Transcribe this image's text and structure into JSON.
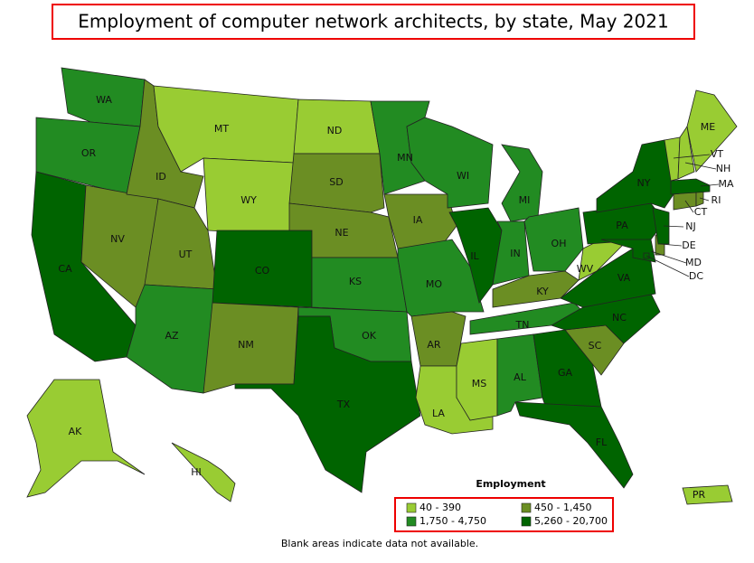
{
  "title": "Employment of computer network architects, by state, May 2021",
  "states": [
    {
      "label": "WA",
      "class": 2
    },
    {
      "label": "OR",
      "class": 2
    },
    {
      "label": "CA",
      "class": 3
    },
    {
      "label": "NV",
      "class": 1
    },
    {
      "label": "ID",
      "class": 1
    },
    {
      "label": "MT",
      "class": 0
    },
    {
      "label": "WY",
      "class": 0
    },
    {
      "label": "UT",
      "class": 1
    },
    {
      "label": "AZ",
      "class": 2
    },
    {
      "label": "CO",
      "class": 3
    },
    {
      "label": "NM",
      "class": 1
    },
    {
      "label": "ND",
      "class": 0
    },
    {
      "label": "SD",
      "class": 1
    },
    {
      "label": "NE",
      "class": 1
    },
    {
      "label": "KS",
      "class": 2
    },
    {
      "label": "OK",
      "class": 2
    },
    {
      "label": "TX",
      "class": 3
    },
    {
      "label": "MN",
      "class": 2
    },
    {
      "label": "IA",
      "class": 1
    },
    {
      "label": "MO",
      "class": 2
    },
    {
      "label": "AR",
      "class": 1
    },
    {
      "label": "LA",
      "class": 0
    },
    {
      "label": "WI",
      "class": 2
    },
    {
      "label": "IL",
      "class": 3
    },
    {
      "label": "MI",
      "class": 2
    },
    {
      "label": "IN",
      "class": 2
    },
    {
      "label": "OH",
      "class": 2
    },
    {
      "label": "KY",
      "class": 1
    },
    {
      "label": "TN",
      "class": 2
    },
    {
      "label": "MS",
      "class": 0
    },
    {
      "label": "AL",
      "class": 2
    },
    {
      "label": "GA",
      "class": 3
    },
    {
      "label": "FL",
      "class": 3
    },
    {
      "label": "SC",
      "class": 1
    },
    {
      "label": "NC",
      "class": 3
    },
    {
      "label": "VA",
      "class": 3
    },
    {
      "label": "WV",
      "class": 0
    },
    {
      "label": "PA",
      "class": 3
    },
    {
      "label": "NY",
      "class": 3
    },
    {
      "label": "MD",
      "class": 3
    },
    {
      "label": "DE",
      "class": 1
    },
    {
      "label": "DC",
      "class": 3
    },
    {
      "label": "NJ",
      "class": 3
    },
    {
      "label": "CT",
      "class": 1
    },
    {
      "label": "RI",
      "class": 1
    },
    {
      "label": "MA",
      "class": 3
    },
    {
      "label": "VT",
      "class": 0
    },
    {
      "label": "NH",
      "class": 0
    },
    {
      "label": "ME",
      "class": 0
    },
    {
      "label": "AK",
      "class": 0
    },
    {
      "label": "HI",
      "class": 0
    },
    {
      "label": "PR",
      "class": 0
    }
  ],
  "legend": {
    "title": "Employment",
    "items": [
      {
        "label": "40 - 390",
        "color": "#99cc33"
      },
      {
        "label": "450 - 1,450",
        "color": "#6b8e23"
      },
      {
        "label": "1,750 - 4,750",
        "color": "#228b22"
      },
      {
        "label": "5,260 - 20,700",
        "color": "#006400"
      }
    ]
  },
  "note": "Blank areas indicate data not available."
}
